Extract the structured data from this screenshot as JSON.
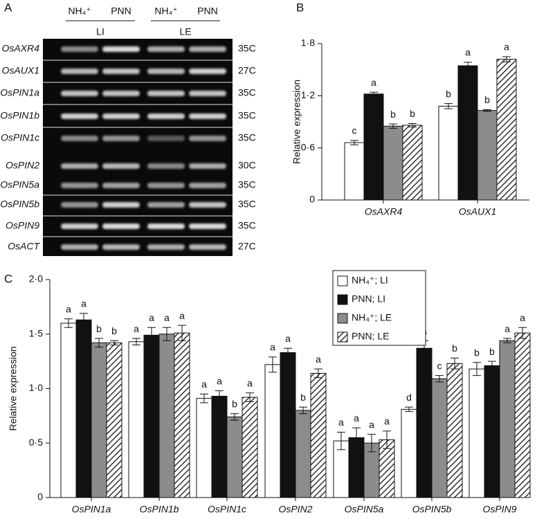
{
  "gel": {
    "panel_label": "A",
    "lane_labels": [
      "NH₄⁺",
      "PNN",
      "NH₄⁺",
      "PNN"
    ],
    "group_labels": [
      "LI",
      "LE"
    ],
    "rows": [
      {
        "gene": "OsAXR4",
        "cycles": "35C"
      },
      {
        "gene": "OsAUX1",
        "cycles": "27C"
      },
      {
        "gene": "OsPIN1a",
        "cycles": "35C"
      },
      {
        "gene": "OsPIN1b",
        "cycles": "35C"
      },
      {
        "gene": "OsPIN1c",
        "cycles": "35C"
      },
      {
        "gene": "OsPIN2",
        "cycles": "30C"
      },
      {
        "gene": "OsPIN5a",
        "cycles": "35C"
      },
      {
        "gene": "OsPIN5b",
        "cycles": "35C"
      },
      {
        "gene": "OsPIN9",
        "cycles": "35C"
      },
      {
        "gene": "OsACT",
        "cycles": "27C"
      }
    ]
  },
  "chart_data": [
    {
      "type": "bar",
      "panel_label": "B",
      "y_label": "Relative expression",
      "categories": [
        "OsAXR4",
        "OsAUX1"
      ],
      "series": [
        {
          "color": "#ffffff",
          "values": [
            0.66,
            1.08
          ],
          "errors": [
            0.025,
            0.03
          ],
          "letters": [
            "c",
            "b"
          ]
        },
        {
          "color": "#111111",
          "values": [
            1.22,
            1.545
          ],
          "errors": [
            0.02,
            0.04
          ],
          "letters": [
            "a",
            "a"
          ]
        },
        {
          "color": "#8c8c8c",
          "values": [
            0.85,
            1.03
          ],
          "errors": [
            0.025,
            0.01
          ],
          "letters": [
            "b",
            "b"
          ]
        },
        {
          "color": "#ffffff",
          "pattern": "hatched",
          "values": [
            0.86,
            1.62
          ],
          "errors": [
            0.02,
            0.03
          ],
          "letters": [
            "b",
            "a"
          ]
        }
      ],
      "ylim": [
        0,
        1.8
      ],
      "yticks": [
        0,
        {
          "value": 0.6,
          "label": "0·6"
        },
        {
          "value": 1.2,
          "label": "1·2"
        },
        {
          "value": 1.8,
          "label": "1·8"
        }
      ]
    },
    {
      "type": "bar",
      "panel_label": "C",
      "y_label": "Relative expression",
      "categories": [
        "OsPIN1a",
        "OsPIN1b",
        "OsPIN1c",
        "OsPIN2",
        "OsPIN5a",
        "OsPIN5b",
        "OsPIN9"
      ],
      "series": [
        {
          "name": "NH₄⁺; LI",
          "color": "#ffffff",
          "values": [
            1.6,
            1.43,
            0.91,
            1.22,
            0.52,
            0.81,
            1.18
          ],
          "errors": [
            0.04,
            0.03,
            0.04,
            0.07,
            0.08,
            0.02,
            0.06
          ],
          "letters": [
            "a",
            "a",
            "a",
            "a",
            "a",
            "d",
            "b"
          ]
        },
        {
          "name": "PNN; LI",
          "color": "#111111",
          "values": [
            1.63,
            1.49,
            0.93,
            1.33,
            0.55,
            1.37,
            1.21
          ],
          "errors": [
            0.06,
            0.07,
            0.05,
            0.04,
            0.09,
            0.07,
            0.04
          ],
          "letters": [
            "a",
            "a",
            "a",
            "a",
            "a",
            "a",
            "b"
          ]
        },
        {
          "name": "NH₄⁺; LE",
          "color": "#8c8c8c",
          "values": [
            1.42,
            1.5,
            0.74,
            0.8,
            0.5,
            1.09,
            1.44
          ],
          "errors": [
            0.04,
            0.06,
            0.03,
            0.03,
            0.08,
            0.03,
            0.02
          ],
          "letters": [
            "b",
            "a",
            "b",
            "b",
            "a",
            "c",
            "a"
          ]
        },
        {
          "name": "PNN; LE",
          "color": "#ffffff",
          "pattern": "hatched",
          "values": [
            1.42,
            1.51,
            0.92,
            1.14,
            0.53,
            1.23,
            1.51
          ],
          "errors": [
            0.02,
            0.07,
            0.04,
            0.04,
            0.08,
            0.05,
            0.05
          ],
          "letters": [
            "b",
            "a",
            "a",
            "a",
            "a",
            "b",
            "a"
          ]
        }
      ],
      "ylim": [
        0,
        2.0
      ],
      "yticks": [
        0,
        {
          "value": 0.5,
          "label": "0·5"
        },
        {
          "value": 1.0,
          "label": "1·0"
        },
        {
          "value": 1.5,
          "label": "1·5"
        },
        {
          "value": 2.0,
          "label": "2·0"
        }
      ],
      "legend": "top-right"
    }
  ]
}
